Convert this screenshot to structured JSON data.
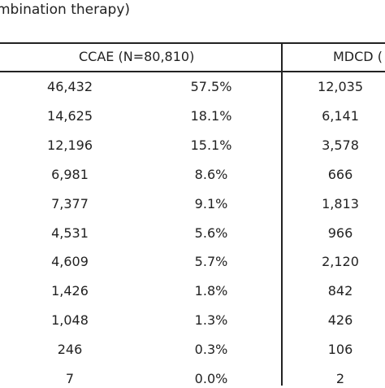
{
  "caption": "mbination therapy)",
  "headers": {
    "ccae": "CCAE (N=80,810)",
    "mdcd": "MDCD ("
  },
  "rows": [
    {
      "n": "46,432",
      "pct": "57.5%",
      "mdcd_n": "12,035"
    },
    {
      "n": "14,625",
      "pct": "18.1%",
      "mdcd_n": "6,141"
    },
    {
      "n": "12,196",
      "pct": "15.1%",
      "mdcd_n": "3,578"
    },
    {
      "n": "6,981",
      "pct": "8.6%",
      "mdcd_n": "666"
    },
    {
      "n": "7,377",
      "pct": "9.1%",
      "mdcd_n": "1,813"
    },
    {
      "n": "4,531",
      "pct": "5.6%",
      "mdcd_n": "966"
    },
    {
      "n": "4,609",
      "pct": "5.7%",
      "mdcd_n": "2,120"
    },
    {
      "n": "1,426",
      "pct": "1.8%",
      "mdcd_n": "842"
    },
    {
      "n": "1,048",
      "pct": "1.3%",
      "mdcd_n": "426"
    },
    {
      "n": "246",
      "pct": "0.3%",
      "mdcd_n": "106"
    },
    {
      "n": "7",
      "pct": "0.0%",
      "mdcd_n": "2"
    }
  ]
}
